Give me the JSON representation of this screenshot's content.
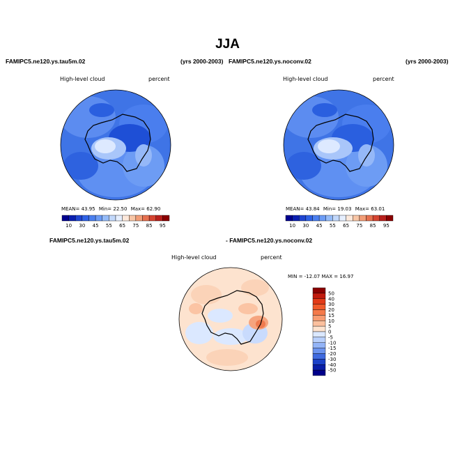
{
  "figure": {
    "title": "JJA"
  },
  "panels": [
    {
      "id": "p1",
      "case_left": "FAMIPC5.ne120.ys.tau5m.02",
      "case_right": "(yrs 2000-2003)",
      "variable": "High-level cloud",
      "units": "percent",
      "stats": {
        "mean_label": "MEAN=",
        "mean": "43.95",
        "min_label": "Min=",
        "min": "22.50",
        "max_label": "Max=",
        "max": "62.90"
      }
    },
    {
      "id": "p2",
      "case_left": "FAMIPC5.ne120.ys.noconv.02",
      "case_right": "(yrs 2000-2003)",
      "variable": "High-level cloud",
      "units": "percent",
      "stats": {
        "mean_label": "MEAN=",
        "mean": "43.84",
        "min_label": "Min=",
        "min": "19.03",
        "max_label": "Max=",
        "max": "63.01"
      }
    },
    {
      "id": "diff",
      "case_left": "FAMIPC5.ne120.ys.tau5m.02",
      "case_right": "- FAMIPC5.ne120.ys.noconv.02",
      "variable": "High-level cloud",
      "units": "percent",
      "stats_text": "MIN = -12.07  MAX =  16.97"
    }
  ],
  "colorbar_abs": {
    "labels": [
      "10",
      "30",
      "45",
      "55",
      "65",
      "75",
      "85",
      "95"
    ],
    "colors": [
      "#00008f",
      "#0a1fb0",
      "#1f45d1",
      "#2f62e5",
      "#4b7fef",
      "#6c9cf5",
      "#95bbf8",
      "#c2d8fb",
      "#e6efff",
      "#fde9dc",
      "#f8c6a6",
      "#f29d77",
      "#e6704f",
      "#d54431",
      "#b8201c",
      "#8b0000"
    ]
  },
  "colorbar_diff": {
    "labels": [
      "50",
      "40",
      "30",
      "20",
      "15",
      "10",
      "5",
      "0",
      "-5",
      "-10",
      "-15",
      "-20",
      "-30",
      "-40",
      "-50"
    ],
    "colors": [
      "#8b0000",
      "#c11a0d",
      "#e23a17",
      "#f05a2a",
      "#f57a4a",
      "#f89c72",
      "#fbc09e",
      "#fde3cf",
      "#dbe8ff",
      "#b9d0fc",
      "#93b4f7",
      "#6b93ef",
      "#3f6ae0",
      "#1c42c8",
      "#0a1fa8",
      "#00008a"
    ]
  }
}
